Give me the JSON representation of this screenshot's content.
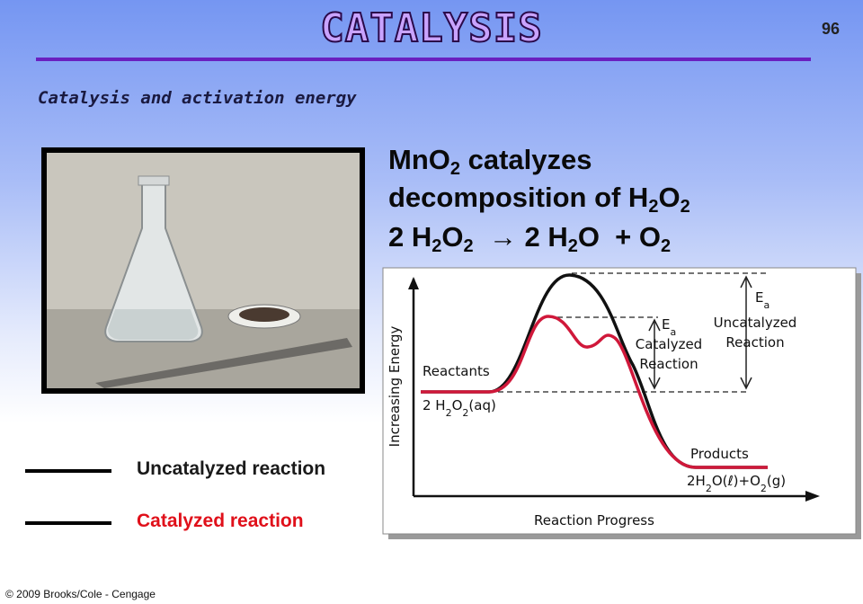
{
  "slide_number": "96",
  "title": "CATALYSIS",
  "subtitle": "Catalysis and activation energy",
  "heading": [
    [
      {
        "text": "MnO"
      },
      {
        "sub": "2"
      },
      {
        "text": " catalyzes"
      }
    ],
    [
      {
        "text": "decomposition of H"
      },
      {
        "sub": "2"
      },
      {
        "text": "O"
      },
      {
        "sub": "2"
      }
    ],
    [
      {
        "text": "2 H"
      },
      {
        "sub": "2"
      },
      {
        "text": "O"
      },
      {
        "sub": "2"
      },
      {
        "text": "  → 2 H"
      },
      {
        "sub": "2"
      },
      {
        "text": "O  + O"
      },
      {
        "sub": "2"
      }
    ]
  ],
  "diagram": {
    "y_axis_label": "Increasing Energy",
    "x_axis_label": "Reaction Progress",
    "reactants_label": "Reactants",
    "reactants_formula": [
      {
        "text": "2 H"
      },
      {
        "sub": "2"
      },
      {
        "text": "O"
      },
      {
        "sub": "2"
      },
      {
        "text": "(aq)"
      }
    ],
    "products_label": "Products",
    "products_formula": [
      {
        "text": "2H"
      },
      {
        "sub": "2"
      },
      {
        "text": "O(ℓ)+O"
      },
      {
        "sub": "2"
      },
      {
        "text": "(g)"
      }
    ],
    "uncatalyzed_ea": [
      {
        "text": "E"
      },
      {
        "sub": "a"
      }
    ],
    "uncatalyzed_label": [
      "Uncatalyzed",
      "Reaction"
    ],
    "catalyzed_ea": [
      {
        "text": "E"
      },
      {
        "sub": "a"
      }
    ],
    "catalyzed_label": [
      "Catalyzed",
      "Reaction"
    ]
  },
  "legend": [
    {
      "label": "Uncatalyzed reaction"
    },
    {
      "label": "Catalyzed reaction"
    }
  ],
  "footer": "© 2009 Brooks/Cole - Cengage"
}
